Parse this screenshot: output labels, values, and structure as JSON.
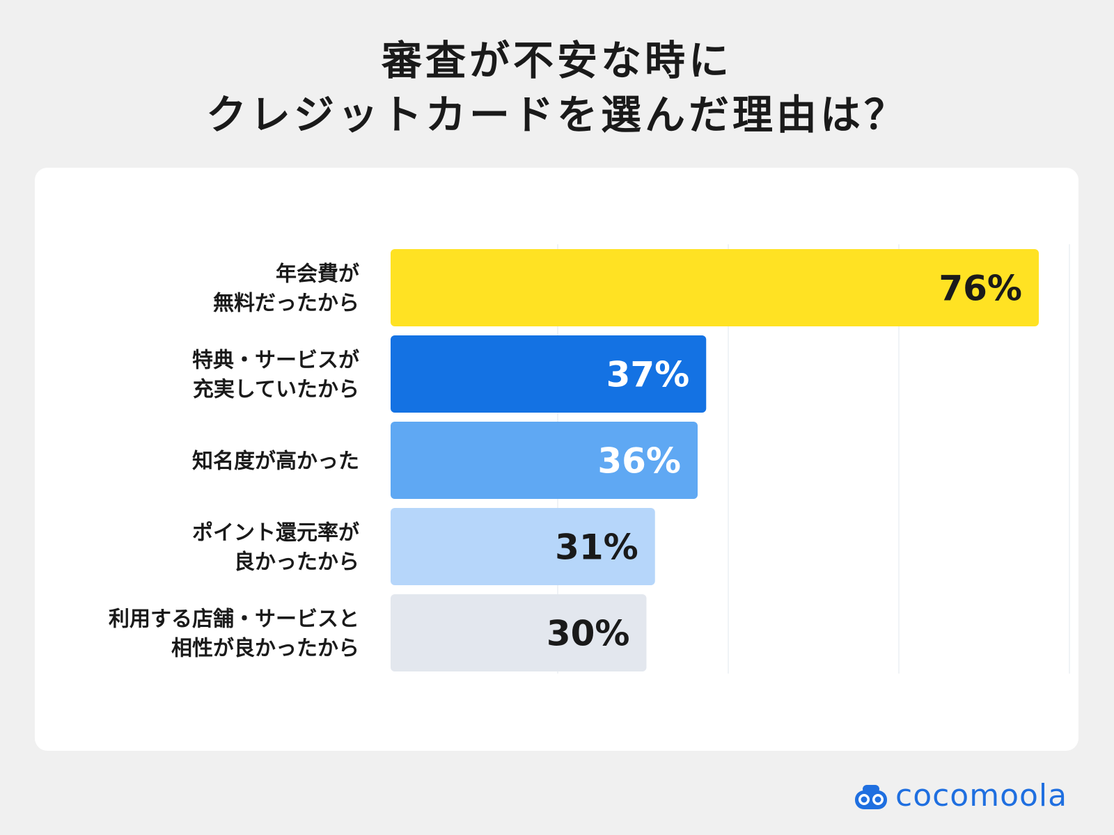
{
  "title_lines": [
    "審査が不安な時に",
    "クレジットカードを選んだ理由は？"
  ],
  "chart_data": {
    "type": "bar",
    "orientation": "horizontal",
    "categories": [
      [
        "年会費が",
        "無料だったから"
      ],
      [
        "特典・サービスが",
        "充実していたから"
      ],
      [
        "知名度が高かった"
      ],
      [
        "ポイント還元率が",
        "良かったから"
      ],
      [
        "利用する店舗・サービスと",
        "相性が良かったから"
      ]
    ],
    "values": [
      76,
      37,
      36,
      31,
      30
    ],
    "value_labels": [
      "76%",
      "37%",
      "36%",
      "31%",
      "30%"
    ],
    "bar_colors": [
      "#ffe223",
      "#1472e3",
      "#5fa8f3",
      "#b6d6fa",
      "#e3e7ee"
    ],
    "label_colors": [
      "#1a1a1a",
      "#ffffff",
      "#ffffff",
      "#1a1a1a",
      "#1a1a1a"
    ],
    "xlim": [
      0,
      80
    ],
    "grid": true
  },
  "brand": {
    "name": "cocomoola",
    "color": "#1f6fe0"
  }
}
